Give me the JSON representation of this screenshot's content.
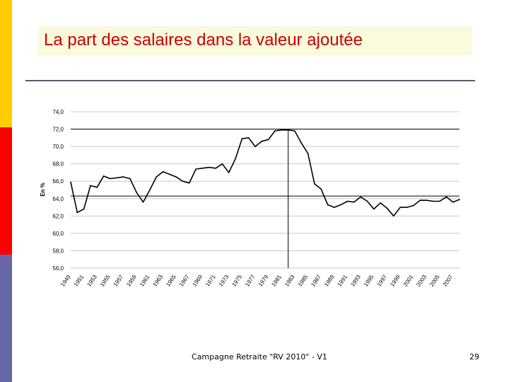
{
  "slide": {
    "title": "La part des salaires dans la valeur ajoutée",
    "footer": "Campagne Retraite \"RV 2010\" - V1",
    "page_number": "29",
    "accent_colors": {
      "yellow": "#ffcc00",
      "red": "#ff0000",
      "blue": "#6666a8",
      "title": "#cc0000"
    }
  },
  "chart_data": {
    "type": "line",
    "title": "",
    "xlabel": "",
    "ylabel": "En %",
    "ylim": [
      56,
      74
    ],
    "yticks": [
      "74,0",
      "72,0",
      "70,0",
      "68,0",
      "66,0",
      "64,0",
      "62,0",
      "60,0",
      "58,0",
      "56,0"
    ],
    "xticks": [
      "1949",
      "1951",
      "1953",
      "1955",
      "1957",
      "1959",
      "1961",
      "1963",
      "1965",
      "1967",
      "1969",
      "1971",
      "1973",
      "1975",
      "1977",
      "1979",
      "1981",
      "1983",
      "1985",
      "1987",
      "1989",
      "1991",
      "1993",
      "1995",
      "1997",
      "1999",
      "2001",
      "2003",
      "2005",
      "2007"
    ],
    "grid": "horizontal",
    "reference_lines": {
      "horizontal": [
        72.0,
        64.3
      ],
      "vertical_year": 1982
    },
    "series": [
      {
        "color": "#000000",
        "x": [
          1949,
          1950,
          1951,
          1952,
          1953,
          1954,
          1955,
          1956,
          1957,
          1958,
          1959,
          1960,
          1961,
          1962,
          1963,
          1964,
          1965,
          1966,
          1967,
          1968,
          1969,
          1970,
          1971,
          1972,
          1973,
          1974,
          1975,
          1976,
          1977,
          1978,
          1979,
          1980,
          1981,
          1982,
          1983,
          1984,
          1985,
          1986,
          1987,
          1988,
          1989,
          1990,
          1991,
          1992,
          1993,
          1994,
          1995,
          1996,
          1997,
          1998,
          1999,
          2000,
          2001,
          2002,
          2003,
          2004,
          2005,
          2006,
          2007,
          2008
        ],
        "values": [
          65.9,
          62.4,
          62.8,
          65.5,
          65.3,
          66.6,
          66.3,
          66.4,
          66.5,
          66.3,
          64.7,
          63.6,
          65.0,
          66.5,
          67.1,
          66.8,
          66.5,
          66.0,
          65.8,
          67.4,
          67.5,
          67.6,
          67.5,
          68.0,
          67.0,
          68.6,
          70.9,
          71.0,
          70.0,
          70.6,
          70.8,
          71.8,
          71.9,
          71.9,
          71.8,
          70.4,
          69.2,
          65.7,
          65.1,
          63.3,
          63.0,
          63.3,
          63.7,
          63.6,
          64.2,
          63.7,
          62.8,
          63.5,
          62.9,
          62.0,
          63.0,
          63.0,
          63.2,
          63.8,
          63.8,
          63.7,
          63.7,
          64.2,
          63.6,
          63.9
        ]
      }
    ]
  }
}
